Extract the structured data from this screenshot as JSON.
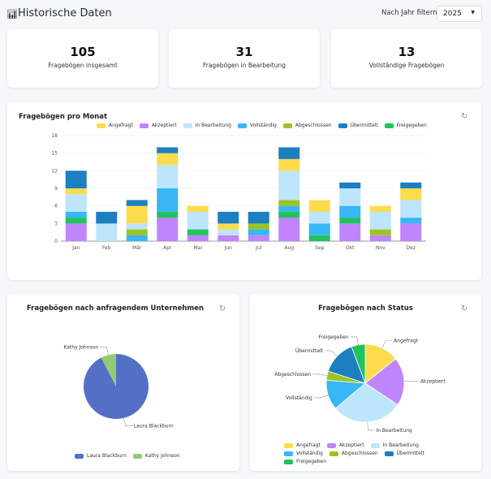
{
  "header": {
    "title": "Historische Daten",
    "icon": "bar-chart-icon",
    "filter_label": "Nach Jahr filtern:",
    "year": "2025"
  },
  "stats": [
    {
      "value": "105",
      "label": "Fragebögen insgesamt"
    },
    {
      "value": "31",
      "label": "Fragebögen in Bearbeitung"
    },
    {
      "value": "13",
      "label": "Vollständige Fragebögen"
    }
  ],
  "monthly": {
    "title": "Fragebögen pro Monat"
  },
  "company": {
    "title": "Fragebögen nach anfragendem Unternehmen"
  },
  "status": {
    "title": "Fragebögen nach Status"
  },
  "chart_data": [
    {
      "type": "bar",
      "stacked": true,
      "title": "Fragebögen pro Monat",
      "ylim": [
        0,
        18
      ],
      "yticks": [
        0,
        3,
        6,
        9,
        12,
        15,
        18
      ],
      "grid": true,
      "legend": "top",
      "categories": [
        "Jan",
        "Feb",
        "Mär",
        "Apr",
        "Mai",
        "Jun",
        "Jul",
        "Aug",
        "Sep",
        "Okt",
        "Nov",
        "Dez"
      ],
      "series": [
        {
          "name": "Angefragt",
          "color": "#fcdc4d",
          "values": [
            1,
            0,
            3,
            2,
            1,
            1,
            0,
            2,
            2,
            0,
            1,
            2
          ]
        },
        {
          "name": "Akzeptiert",
          "color": "#c084fc",
          "values": [
            3,
            0,
            0,
            4,
            1,
            1,
            1,
            4,
            0,
            3,
            1,
            3
          ]
        },
        {
          "name": "In Bearbeitung",
          "color": "#bde5fb",
          "values": [
            3,
            3,
            1,
            4,
            3,
            1,
            0,
            5,
            2,
            3,
            3,
            3
          ]
        },
        {
          "name": "Vollständig",
          "color": "#38b6f5",
          "values": [
            1,
            0,
            1,
            4,
            0,
            0,
            1,
            1,
            2,
            2,
            0,
            1
          ]
        },
        {
          "name": "Abgeschlossen",
          "color": "#9bc424",
          "values": [
            0,
            0,
            1,
            0,
            0,
            0,
            1,
            1,
            0,
            0,
            1,
            0
          ]
        },
        {
          "name": "Übermittelt",
          "color": "#1b7fc2",
          "values": [
            3,
            2,
            1,
            1,
            0,
            2,
            2,
            2,
            0,
            1,
            0,
            1
          ]
        },
        {
          "name": "Freigegeben",
          "color": "#22c35e",
          "values": [
            1,
            0,
            0,
            1,
            1,
            0,
            0,
            1,
            1,
            1,
            0,
            0
          ]
        }
      ]
    },
    {
      "type": "pie",
      "title": "Fragebögen nach anfragendem Unternehmen",
      "legend": "bottom",
      "slices": [
        {
          "name": "Laura Blackburn",
          "value": 97,
          "color": "#5470c6"
        },
        {
          "name": "Kathy Johnson",
          "value": 8,
          "color": "#91cc75"
        }
      ]
    },
    {
      "type": "pie",
      "title": "Fragebögen nach Status",
      "legend": "bottom",
      "slices": [
        {
          "name": "Angefragt",
          "value": 15,
          "color": "#fcdc4d"
        },
        {
          "name": "Akzeptiert",
          "value": 21,
          "color": "#c084fc"
        },
        {
          "name": "In Bearbeitung",
          "value": 31,
          "color": "#bde5fb"
        },
        {
          "name": "Vollständig",
          "value": 13,
          "color": "#38b6f5"
        },
        {
          "name": "Abgeschlossen",
          "value": 4,
          "color": "#9bc424"
        },
        {
          "name": "Übermittelt",
          "value": 15,
          "color": "#1b7fc2"
        },
        {
          "name": "Freigegeben",
          "value": 6,
          "color": "#22c35e"
        }
      ]
    }
  ]
}
